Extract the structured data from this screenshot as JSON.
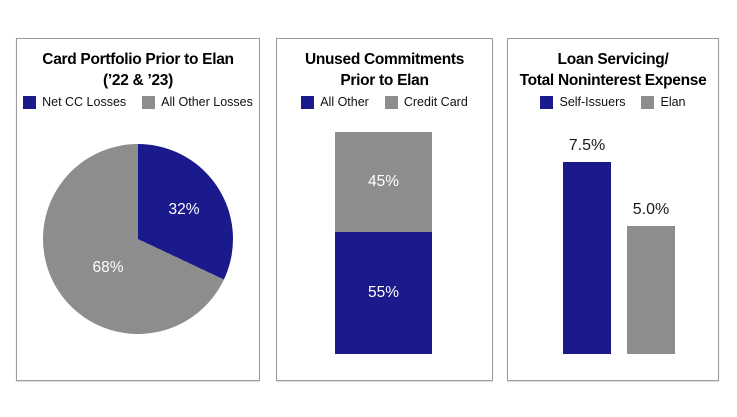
{
  "colors": {
    "navy": "#1a1a8c",
    "gray": "#8d8d8d",
    "panel_border": "#9b9b9b",
    "title_text": "#000000",
    "inside_label_text": "#ffffff"
  },
  "panels": [
    {
      "title_line1": "Card Portfolio Prior to Elan",
      "title_line2": "(’22 & ’23)",
      "legend": {
        "item1": "Net CC Losses",
        "item2": "All Other Losses"
      },
      "labels": {
        "slice1": "32%",
        "slice2": "68%"
      }
    },
    {
      "title_line1": "Unused Commitments",
      "title_line2": "Prior to Elan",
      "legend": {
        "item1": "All Other",
        "item2": "Credit Card"
      },
      "labels": {
        "top_segment": "45%",
        "bottom_segment": "55%"
      }
    },
    {
      "title_line1": "Loan Servicing/",
      "title_line2": "Total Noninterest Expense",
      "legend": {
        "item1": "Self-Issuers",
        "item2": "Elan"
      },
      "labels": {
        "bar1": "7.5%",
        "bar2": "5.0%"
      }
    }
  ],
  "chart_data": [
    {
      "type": "pie",
      "title": "Card Portfolio Prior to Elan (’22 & ’23)",
      "categories": [
        "Net CC Losses",
        "All Other Losses"
      ],
      "values": [
        32,
        68
      ],
      "data_labels": [
        "32%",
        "68%"
      ],
      "unit": "%",
      "colors": [
        "#1a1a8c",
        "#8d8d8d"
      ],
      "legend_position": "top",
      "start_angle_deg": 0,
      "direction": "clockwise"
    },
    {
      "type": "bar",
      "subtype": "stacked-single-column",
      "title": "Unused Commitments Prior to Elan",
      "categories": [
        "Unused Commitments"
      ],
      "series": [
        {
          "name": "All Other",
          "values": [
            55
          ],
          "color": "#1a1a8c",
          "position": "bottom",
          "data_label": "55%"
        },
        {
          "name": "Credit Card",
          "values": [
            45
          ],
          "color": "#8d8d8d",
          "position": "top",
          "data_label": "45%"
        }
      ],
      "unit": "%",
      "legend_position": "top",
      "axes_shown": false
    },
    {
      "type": "bar",
      "title": "Loan Servicing/Total Noninterest Expense",
      "categories": [
        "Self-Issuers",
        "Elan"
      ],
      "values": [
        7.5,
        5.0
      ],
      "data_labels": [
        "7.5%",
        "5.0%"
      ],
      "unit": "%",
      "colors": [
        "#1a1a8c",
        "#8d8d8d"
      ],
      "legend_position": "top",
      "axes_shown": false,
      "label_position": "above-bar"
    }
  ]
}
